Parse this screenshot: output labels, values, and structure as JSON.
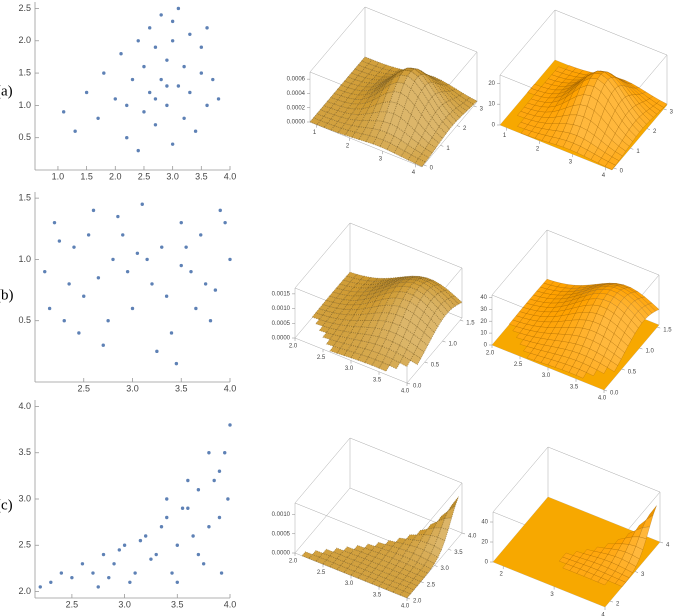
{
  "row_labels": [
    "(a)",
    "(b)",
    "(c)"
  ],
  "chart_data": [
    {
      "type": "scatter",
      "color": "#5e81b5",
      "xlim": [
        0.6,
        4.0
      ],
      "ylim": [
        0,
        2.6
      ],
      "xticks": [
        {
          "value": 1.0,
          "label": "1.0"
        },
        1.5,
        {
          "value": 2.0,
          "label": "2.0"
        },
        2.5,
        {
          "value": 3.0,
          "label": "3.0"
        },
        3.5,
        {
          "value": 4.0,
          "label": "4.0"
        }
      ],
      "yticks": [
        0.5,
        {
          "value": 1.0,
          "label": "1.0"
        },
        1.5,
        {
          "value": 2.0,
          "label": "2.0"
        },
        2.5
      ],
      "x": [
        1.1,
        1.3,
        1.5,
        1.7,
        1.8,
        2.0,
        2.1,
        2.2,
        2.3,
        2.4,
        2.5,
        2.5,
        2.6,
        2.6,
        2.7,
        2.7,
        2.8,
        2.8,
        2.9,
        2.9,
        3.0,
        3.0,
        3.1,
        3.1,
        3.2,
        3.2,
        3.3,
        3.3,
        3.4,
        3.5,
        3.5,
        3.6,
        3.7,
        3.8,
        2.2,
        2.9,
        3.0,
        2.4,
        3.6,
        2.7
      ],
      "y": [
        0.9,
        0.6,
        1.2,
        0.8,
        1.5,
        1.1,
        1.8,
        0.5,
        1.4,
        2.0,
        0.9,
        1.6,
        2.2,
        1.2,
        0.7,
        1.9,
        1.4,
        2.4,
        1.0,
        1.7,
        0.4,
        2.0,
        1.3,
        2.5,
        0.8,
        1.6,
        1.2,
        2.1,
        0.6,
        1.5,
        1.9,
        1.0,
        1.4,
        1.1,
        1.0,
        1.3,
        2.3,
        0.3,
        2.2,
        1.1
      ]
    },
    {
      "type": "histogram3d",
      "xlim": [
        0.8,
        4.2
      ],
      "ylim": [
        -0.1,
        3.2
      ],
      "zlim": [
        0,
        0.0007
      ],
      "xticks": [
        1,
        2,
        3,
        4
      ],
      "yticks": [
        0,
        1,
        2,
        3
      ],
      "zticks": [
        {
          "value": 0,
          "label": "0.0000"
        },
        {
          "value": 0.0002,
          "label": "0.0002"
        },
        {
          "value": 0.0004,
          "label": "0.0004"
        },
        {
          "value": 0.0006,
          "label": "0.0006"
        }
      ]
    },
    {
      "type": "surface3d",
      "xlim": [
        0.8,
        4.2
      ],
      "ylim": [
        -0.1,
        3.2
      ],
      "zlim": [
        0,
        24
      ],
      "xticks": [
        1,
        2,
        3,
        4
      ],
      "yticks": [
        0,
        1,
        2,
        3
      ],
      "zticks": [
        0,
        10,
        20
      ]
    },
    {
      "type": "scatter",
      "color": "#5e81b5",
      "xlim": [
        2.0,
        4.0
      ],
      "ylim": [
        0,
        1.55
      ],
      "xticks": [
        2.5,
        {
          "value": 3.0,
          "label": "3.0"
        },
        3.5,
        {
          "value": 4.0,
          "label": "4.0"
        }
      ],
      "yticks": [
        0.5,
        {
          "value": 1.0,
          "label": "1.0"
        },
        1.5
      ],
      "x": [
        2.1,
        2.2,
        2.3,
        2.4,
        2.5,
        2.6,
        2.7,
        2.8,
        2.9,
        3.0,
        3.1,
        3.2,
        3.3,
        3.4,
        3.5,
        3.6,
        3.7,
        3.8,
        3.9,
        4.0,
        2.15,
        2.35,
        2.55,
        2.75,
        2.95,
        3.15,
        3.35,
        3.55,
        3.75,
        3.95,
        2.45,
        2.85,
        3.25,
        3.65,
        3.05,
        2.65,
        3.45,
        3.85,
        2.25,
        3.5
      ],
      "y": [
        0.9,
        1.3,
        0.5,
        1.1,
        0.7,
        1.4,
        0.3,
        1.0,
        1.2,
        0.6,
        1.45,
        0.8,
        1.1,
        0.4,
        1.3,
        0.9,
        1.2,
        0.5,
        1.4,
        1.0,
        0.6,
        0.8,
        1.2,
        0.5,
        0.9,
        1.0,
        0.7,
        1.1,
        0.8,
        1.3,
        0.4,
        1.35,
        0.25,
        0.6,
        1.05,
        0.85,
        0.15,
        0.75,
        1.15,
        0.95
      ]
    },
    {
      "type": "histogram3d",
      "xlim": [
        2.0,
        4.0
      ],
      "ylim": [
        0,
        1.55
      ],
      "zlim": [
        0,
        0.0017
      ],
      "xticks": [
        {
          "value": 2.0,
          "label": "2.0"
        },
        2.5,
        {
          "value": 3.0,
          "label": "3.0"
        },
        3.5,
        {
          "value": 4.0,
          "label": "4.0"
        }
      ],
      "yticks": [
        {
          "value": 0.0,
          "label": "0.0"
        },
        0.5,
        {
          "value": 1.0,
          "label": "1.0"
        },
        1.5
      ],
      "zticks": [
        {
          "value": 0,
          "label": "0.0000"
        },
        {
          "value": 0.0005,
          "label": "0.0005"
        },
        {
          "value": 0.001,
          "label": "0.0010"
        },
        {
          "value": 0.0015,
          "label": "0.0015"
        }
      ]
    },
    {
      "type": "surface3d",
      "xlim": [
        2.0,
        4.0
      ],
      "ylim": [
        0,
        1.55
      ],
      "zlim": [
        0,
        42
      ],
      "xticks": [
        {
          "value": 2.0,
          "label": "2.0"
        },
        2.5,
        {
          "value": 3.0,
          "label": "3.0"
        },
        3.5,
        {
          "value": 4.0,
          "label": "4.0"
        }
      ],
      "yticks": [
        {
          "value": 0.0,
          "label": "0.0"
        },
        0.5,
        {
          "value": 1.0,
          "label": "1.0"
        },
        1.5
      ],
      "zticks": [
        0,
        10,
        20,
        30,
        40
      ]
    },
    {
      "type": "scatter",
      "color": "#5e81b5",
      "xlim": [
        2.15,
        4.0
      ],
      "ylim": [
        1.93,
        4.07
      ],
      "xticks": [
        2.5,
        {
          "value": 3.0,
          "label": "3.0"
        },
        3.5,
        {
          "value": 4.0,
          "label": "4.0"
        }
      ],
      "yticks": [
        {
          "value": 2.0,
          "label": "2.0"
        },
        2.5,
        {
          "value": 3.0,
          "label": "3.0"
        },
        3.5,
        {
          "value": 4.0,
          "label": "4.0"
        }
      ],
      "x": [
        2.2,
        2.3,
        2.4,
        2.5,
        2.6,
        2.7,
        2.8,
        2.9,
        3.0,
        3.1,
        3.2,
        3.3,
        3.4,
        3.5,
        3.6,
        3.7,
        3.8,
        3.9,
        4.0,
        3.95,
        3.85,
        3.75,
        3.65,
        3.55,
        3.45,
        3.35,
        3.25,
        3.15,
        3.05,
        2.95,
        2.85,
        2.75,
        3.9,
        3.8,
        3.7,
        3.98,
        3.6,
        3.4,
        3.92,
        3.5
      ],
      "y": [
        2.05,
        2.1,
        2.2,
        2.15,
        2.3,
        2.2,
        2.4,
        2.3,
        2.5,
        2.2,
        2.6,
        2.4,
        2.8,
        2.5,
        2.9,
        3.1,
        2.7,
        3.3,
        3.8,
        3.5,
        3.2,
        2.3,
        2.6,
        2.9,
        2.2,
        2.7,
        2.35,
        2.55,
        2.1,
        2.45,
        2.15,
        2.05,
        2.8,
        3.5,
        2.4,
        3.0,
        3.2,
        3.0,
        2.2,
        2.1
      ]
    },
    {
      "type": "histogram3d",
      "xlim": [
        2.0,
        4.0
      ],
      "ylim": [
        2.0,
        4.0
      ],
      "zlim": [
        0,
        0.0013
      ],
      "xticks": [
        {
          "value": 2.0,
          "label": "2.0"
        },
        2.5,
        {
          "value": 3.0,
          "label": "3.0"
        },
        3.5,
        {
          "value": 4.0,
          "label": "4.0"
        }
      ],
      "yticks": [
        {
          "value": 2.0,
          "label": "2.0"
        },
        2.5,
        {
          "value": 3.0,
          "label": "3.0"
        },
        3.5,
        {
          "value": 4.0,
          "label": "4.0"
        }
      ],
      "zticks": [
        {
          "value": 0,
          "label": "0.0000"
        },
        {
          "value": 0.0005,
          "label": "0.0005"
        },
        {
          "value": 0.001,
          "label": "0.0010"
        }
      ]
    },
    {
      "type": "surface3d",
      "xlim": [
        1.8,
        4.0
      ],
      "ylim": [
        1.8,
        4.0
      ],
      "zlim": [
        0,
        50
      ],
      "xticks": [
        2,
        3,
        4
      ],
      "yticks": [
        2,
        3,
        4
      ],
      "zticks": [
        0,
        20,
        40
      ]
    }
  ]
}
